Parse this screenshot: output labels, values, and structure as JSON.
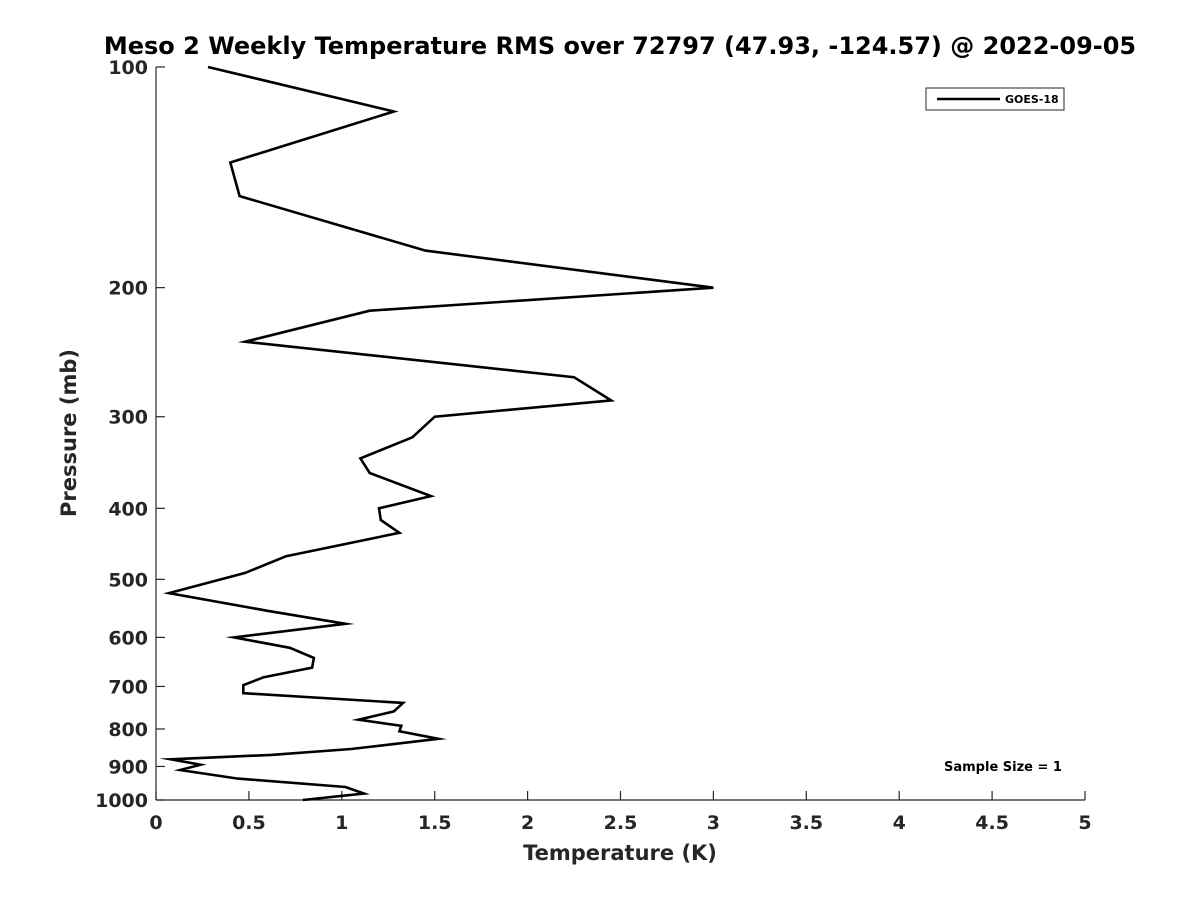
{
  "chart_data": {
    "type": "line",
    "title": "Meso 2 Weekly Temperature RMS over 72797 (47.93, -124.57) @ 2022-09-05",
    "xlabel": "Temperature (K)",
    "ylabel": "Pressure (mb)",
    "xlim": [
      0,
      5
    ],
    "ylim": [
      100,
      1000
    ],
    "y_scale": "log",
    "y_reversed": true,
    "grid": false,
    "x_ticks": [
      "0",
      "0.5",
      "1",
      "1.5",
      "2",
      "2.5",
      "3",
      "3.5",
      "4",
      "4.5",
      "5"
    ],
    "y_ticks": [
      "100",
      "200",
      "300",
      "400",
      "500",
      "600",
      "700",
      "800",
      "900",
      "1000"
    ],
    "legend": {
      "placement": "top-right",
      "entries": [
        "GOES-18"
      ]
    },
    "annotation": "Sample Size = 1",
    "series": [
      {
        "name": "GOES-18",
        "color": "#000000",
        "points": [
          [
            0.28,
            100
          ],
          [
            1.28,
            115
          ],
          [
            0.4,
            135
          ],
          [
            0.45,
            150
          ],
          [
            1.45,
            178
          ],
          [
            3.0,
            200
          ],
          [
            1.15,
            215
          ],
          [
            0.48,
            237
          ],
          [
            2.25,
            265
          ],
          [
            2.45,
            285
          ],
          [
            1.5,
            300
          ],
          [
            1.38,
            320
          ],
          [
            1.1,
            342
          ],
          [
            1.15,
            358
          ],
          [
            1.48,
            385
          ],
          [
            1.2,
            400
          ],
          [
            1.21,
            415
          ],
          [
            1.31,
            432
          ],
          [
            0.7,
            465
          ],
          [
            0.48,
            490
          ],
          [
            0.07,
            522
          ],
          [
            0.6,
            552
          ],
          [
            1.02,
            575
          ],
          [
            0.42,
            600
          ],
          [
            0.72,
            620
          ],
          [
            0.85,
            640
          ],
          [
            0.84,
            660
          ],
          [
            0.58,
            680
          ],
          [
            0.47,
            697
          ],
          [
            0.47,
            715
          ],
          [
            1.33,
            737
          ],
          [
            1.28,
            757
          ],
          [
            1.09,
            777
          ],
          [
            1.32,
            792
          ],
          [
            1.31,
            806
          ],
          [
            1.52,
            825
          ],
          [
            1.05,
            852
          ],
          [
            0.62,
            868
          ],
          [
            0.08,
            880
          ],
          [
            0.24,
            895
          ],
          [
            0.13,
            910
          ],
          [
            0.44,
            935
          ],
          [
            1.02,
            960
          ],
          [
            1.12,
            980
          ],
          [
            0.79,
            1000
          ]
        ]
      }
    ]
  }
}
